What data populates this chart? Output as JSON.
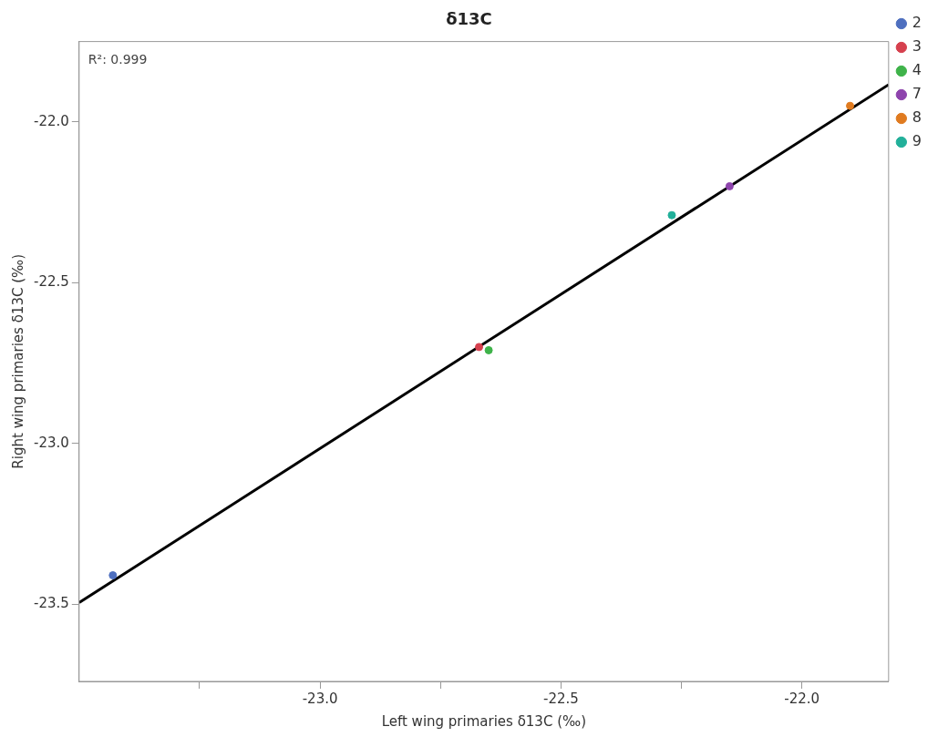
{
  "chart_data": {
    "type": "scatter",
    "title": "δ13C",
    "xlabel": "Left wing primaries δ13C (‰)",
    "ylabel": "Right wing primaries δ13C (‰)",
    "annotations": [
      "R²: 0.999"
    ],
    "legend": "top right",
    "marker": "circle",
    "xlim": [
      -23.5,
      -21.82
    ],
    "ylim": [
      -23.74,
      -21.75
    ],
    "xticks": [
      {
        "value": -23.25,
        "label": null
      },
      {
        "value": -23,
        "label": "-23.0"
      },
      {
        "value": -22.75,
        "label": null
      },
      {
        "value": -22.5,
        "label": "-22.5"
      },
      {
        "value": -22.25,
        "label": null
      },
      {
        "value": -22,
        "label": "-22.0"
      }
    ],
    "yticks": [
      {
        "value": -23.5,
        "label": "-23.5"
      },
      {
        "value": -23,
        "label": "-23.0"
      },
      {
        "value": -22.5,
        "label": "-22.5"
      },
      {
        "value": -22,
        "label": "-22.0"
      }
    ],
    "series": [
      {
        "name": "2",
        "color": "#4e6fbf",
        "x": [
          -23.43
        ],
        "values": [
          -23.41
        ]
      },
      {
        "name": "3",
        "color": "#d6404e",
        "x": [
          -22.67
        ],
        "values": [
          -22.7
        ]
      },
      {
        "name": "4",
        "color": "#3fb34a",
        "x": [
          -22.65
        ],
        "values": [
          -22.71
        ]
      },
      {
        "name": "7",
        "color": "#8e44ad",
        "x": [
          -22.15
        ],
        "values": [
          -22.2
        ]
      },
      {
        "name": "8",
        "color": "#e07b20",
        "x": [
          -21.9
        ],
        "values": [
          -21.95
        ]
      },
      {
        "name": "9",
        "color": "#22b09a",
        "x": [
          -22.27
        ],
        "values": [
          -22.29
        ]
      },
      {
        "type": "line",
        "marker": "none",
        "color": "#000000",
        "x": [
          -23.5,
          -21.82
        ],
        "values": [
          -23.495,
          -21.884
        ]
      }
    ]
  }
}
